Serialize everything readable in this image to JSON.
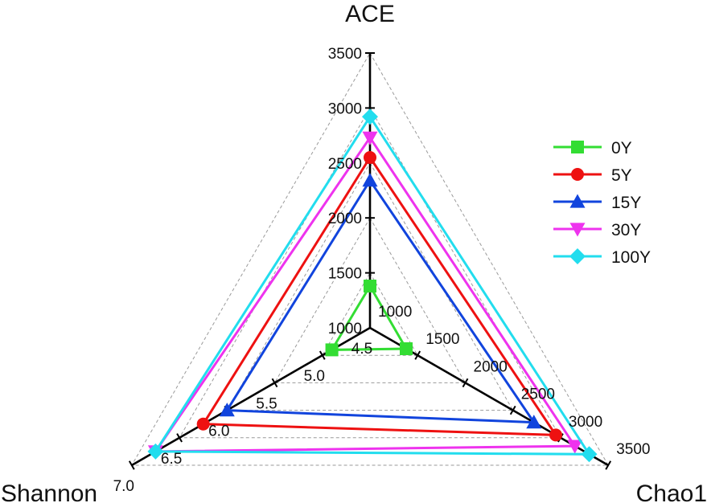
{
  "chart_data": {
    "type": "radar",
    "title": "",
    "axes": [
      {
        "name": "ACE",
        "range": [
          1000,
          3500
        ],
        "ticks": [
          {
            "value": 1000,
            "label": "1000"
          },
          {
            "value": 1500,
            "label": "1500"
          },
          {
            "value": 2000,
            "label": "2000"
          },
          {
            "value": 2500,
            "label": "2500"
          },
          {
            "value": 3000,
            "label": "3000"
          },
          {
            "value": 3500,
            "label": "3500"
          }
        ]
      },
      {
        "name": "Chao1",
        "range": [
          1000,
          3500
        ],
        "ticks": [
          {
            "value": 1000,
            "label": "1000"
          },
          {
            "value": 1500,
            "label": "1500"
          },
          {
            "value": 2000,
            "label": "2000"
          },
          {
            "value": 2500,
            "label": "2500"
          },
          {
            "value": 3000,
            "label": "3000"
          },
          {
            "value": 3500,
            "label": "3500"
          }
        ]
      },
      {
        "name": "Shannon",
        "range": [
          4.5,
          7.0
        ],
        "ticks": [
          {
            "value": 4.5,
            "label": "4.5"
          },
          {
            "value": 5.0,
            "label": "5.0"
          },
          {
            "value": 5.5,
            "label": "5.5"
          },
          {
            "value": 6.0,
            "label": "6.0"
          },
          {
            "value": 6.5,
            "label": "6.5"
          },
          {
            "value": 7.0,
            "label": "7.0"
          }
        ]
      }
    ],
    "series": [
      {
        "name": "0Y",
        "color": "#33dd33",
        "marker": "square",
        "values": {
          "ACE": 1380,
          "Chao1": 1380,
          "Shannon": 4.9
        }
      },
      {
        "name": "5Y",
        "color": "#ee1111",
        "marker": "circle",
        "values": {
          "ACE": 2550,
          "Chao1": 2950,
          "Shannon": 6.25
        }
      },
      {
        "name": "15Y",
        "color": "#1144dd",
        "marker": "triangle-up",
        "values": {
          "ACE": 2340,
          "Chao1": 2720,
          "Shannon": 6.0
        }
      },
      {
        "name": "30Y",
        "color": "#ee33ee",
        "marker": "triangle-down",
        "values": {
          "ACE": 2730,
          "Chao1": 3150,
          "Shannon": 6.75
        }
      },
      {
        "name": "100Y",
        "color": "#22ddee",
        "marker": "diamond",
        "values": {
          "ACE": 2920,
          "Chao1": 3300,
          "Shannon": 6.75
        }
      }
    ],
    "grid": true,
    "legend_position": "right"
  }
}
